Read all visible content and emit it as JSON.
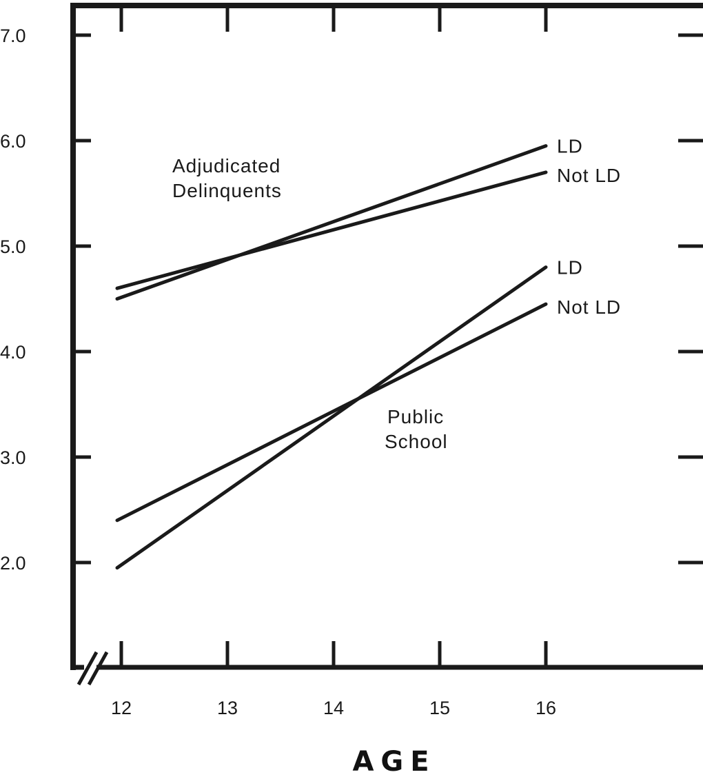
{
  "chart_data": {
    "type": "line",
    "title": "",
    "xlabel": "AGE",
    "ylabel": "",
    "x": [
      12,
      16
    ],
    "x_ticks": [
      "12",
      "13",
      "14",
      "15",
      "16"
    ],
    "y_ticks": [
      "2.0",
      "3.0",
      "4.0",
      "5.0",
      "6.0",
      "7.0"
    ],
    "ylim": [
      1.0,
      7.0
    ],
    "xlim": [
      11.6,
      17.5
    ],
    "axis_break": true,
    "grid": false,
    "groups": [
      {
        "label_lines": [
          "Adjudicated",
          "Delinquents"
        ]
      },
      {
        "label_lines": [
          "Public",
          "School"
        ]
      }
    ],
    "series": [
      {
        "name": "LD",
        "group": 0,
        "values": [
          4.5,
          5.95
        ]
      },
      {
        "name": "Not LD",
        "group": 0,
        "values": [
          4.6,
          5.7
        ]
      },
      {
        "name": "LD",
        "group": 1,
        "values": [
          1.95,
          4.8
        ]
      },
      {
        "name": "Not LD",
        "group": 1,
        "values": [
          2.4,
          4.45
        ]
      }
    ],
    "colors": {
      "line": "#1a1a1a",
      "frame": "#1a1a1a",
      "background": "#ffffff"
    }
  }
}
